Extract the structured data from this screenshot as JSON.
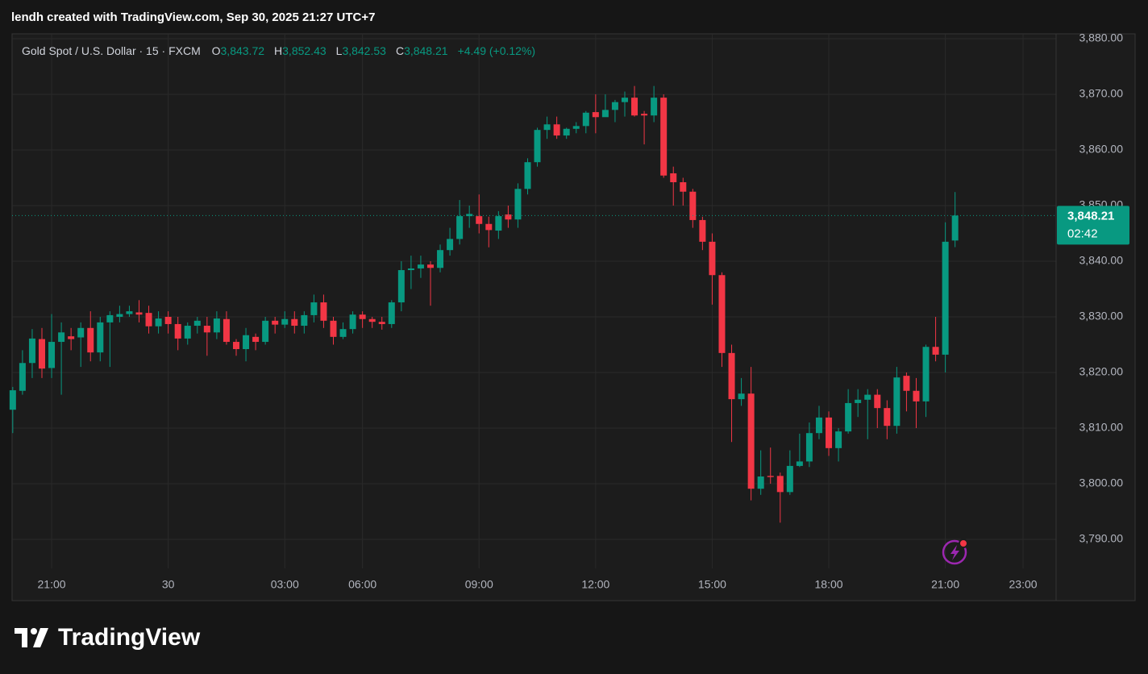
{
  "header": {
    "text": "lendh created with TradingView.com, Sep 30, 2025 21:27 UTC+7"
  },
  "chart_data": {
    "type": "candlestick",
    "symbol": "Gold Spot / U.S. Dollar · 15 · FXCM",
    "ohlc_legend": [
      {
        "key": "O",
        "value": "3,843.72"
      },
      {
        "key": "H",
        "value": "3,852.43"
      },
      {
        "key": "L",
        "value": "3,842.53"
      },
      {
        "key": "C",
        "value": "3,848.21"
      }
    ],
    "change": "+4.49 (+0.12%)",
    "open": [
      3813.3,
      3816.7,
      3821.7,
      3826,
      3820.8,
      3825.5,
      3826.5,
      3826.3,
      3828,
      3823.6,
      3829,
      3830,
      3830.5,
      3830.8,
      3830.7,
      3828.3,
      3830,
      3828.7,
      3826.1,
      3828.4,
      3828.4,
      3827.2,
      3829.6,
      3825.5,
      3824.2,
      3826.4,
      3825.5,
      3829.3,
      3828.6,
      3829.6,
      3828.4,
      3830.3,
      3832.6,
      3829.3,
      3826.4,
      3827.8,
      3830.4,
      3829.6,
      3829.1,
      3828.7,
      3832.6,
      3838.4,
      3838.7,
      3839.4,
      3838.8,
      3842,
      3844,
      3848.1,
      3848.1,
      3846.7,
      3845.5,
      3848.4,
      3847.5,
      3853,
      3857.8,
      3863.6,
      3864.6,
      3862.6,
      3863.8,
      3864.3,
      3866.8,
      3865.9,
      3867.2,
      3868.6,
      3869.4,
      3866.5,
      3866.2,
      3869.4,
      3855.8,
      3854.2,
      3852.5,
      3847.4,
      3843.5,
      3837.5,
      3823.5,
      3815.2,
      3816.2,
      3799.1,
      3801.4,
      3801.4,
      3798.5,
      3803.2,
      3804,
      3809.1,
      3811.9,
      3806.4,
      3809.4,
      3814.5,
      3815.1,
      3816,
      3813.6,
      3810.4,
      3819.4,
      3816.7,
      3814.8,
      3824.6,
      3823.2,
      3843.72
    ],
    "high": [
      3817.4,
      3824,
      3827.8,
      3828,
      3830.5,
      3829,
      3828,
      3829,
      3831,
      3830,
      3831,
      3832,
      3832,
      3833,
      3832,
      3831,
      3831,
      3830,
      3829,
      3830,
      3830,
      3831,
      3831,
      3826,
      3828,
      3827,
      3830,
      3830,
      3831,
      3831,
      3831,
      3834,
      3834,
      3830,
      3829,
      3831,
      3831,
      3830,
      3830,
      3833,
      3840,
      3841,
      3841,
      3840,
      3843,
      3846,
      3851,
      3850,
      3852,
      3848,
      3849,
      3850,
      3854,
      3858.5,
      3864,
      3866,
      3866,
      3864,
      3865,
      3867,
      3870,
      3870,
      3869,
      3870.5,
      3871.5,
      3867,
      3871.5,
      3870,
      3857,
      3855,
      3853,
      3848,
      3845,
      3838,
      3825,
      3819,
      3821,
      3806,
      3806.5,
      3802,
      3806,
      3809,
      3811,
      3814,
      3813,
      3810,
      3817,
      3817,
      3817,
      3817,
      3815,
      3821,
      3820,
      3819,
      3825,
      3830,
      3847,
      3852.43
    ],
    "low": [
      3809.1,
      3816,
      3819,
      3819,
      3819,
      3816,
      3824,
      3821,
      3822,
      3822,
      3821,
      3829,
      3830,
      3829,
      3827,
      3827,
      3827,
      3824,
      3825,
      3827,
      3823,
      3826,
      3825,
      3823,
      3822,
      3824,
      3825,
      3827,
      3828,
      3827,
      3827,
      3829,
      3828,
      3825,
      3826,
      3827,
      3828,
      3828,
      3827.7,
      3828,
      3831,
      3835,
      3837,
      3832,
      3838,
      3841,
      3843,
      3846,
      3845,
      3842.5,
      3844,
      3846,
      3846,
      3852,
      3857,
      3862,
      3862,
      3862,
      3863,
      3863,
      3863,
      3866,
      3865,
      3866,
      3866,
      3861,
      3865,
      3855,
      3850,
      3850,
      3846,
      3842,
      3832.2,
      3821,
      3807.5,
      3814,
      3797,
      3798,
      3800,
      3793,
      3798,
      3803,
      3803,
      3808,
      3805,
      3804,
      3809,
      3812,
      3808,
      3810,
      3808,
      3809,
      3813,
      3810,
      3812,
      3822,
      3820,
      3842.53
    ],
    "close": [
      3816.8,
      3821.7,
      3826.1,
      3820.7,
      3825.5,
      3827.2,
      3826,
      3828,
      3823.6,
      3829,
      3830.3,
      3830.5,
      3831,
      3830.4,
      3828.3,
      3829.7,
      3828.7,
      3826.1,
      3828.4,
      3829.3,
      3827.2,
      3829.7,
      3825.5,
      3824.2,
      3826.7,
      3825.5,
      3829.3,
      3828.6,
      3829.6,
      3828.4,
      3830.3,
      3832.6,
      3829.3,
      3826.4,
      3827.8,
      3830.4,
      3829.6,
      3829.1,
      3828.7,
      3832.6,
      3838.4,
      3838.7,
      3839.4,
      3838.8,
      3842,
      3844,
      3848.1,
      3848.5,
      3846.7,
      3845.6,
      3848.1,
      3847.5,
      3853,
      3857.8,
      3863.6,
      3864.6,
      3862.6,
      3863.8,
      3864.3,
      3866.7,
      3865.9,
      3867.2,
      3868.6,
      3869.4,
      3866.2,
      3866.2,
      3869.4,
      3855.4,
      3854.2,
      3852.5,
      3847.4,
      3843.5,
      3837.5,
      3823.5,
      3815.2,
      3816.2,
      3799.1,
      3801.3,
      3801.2,
      3798.5,
      3803.2,
      3804,
      3809.1,
      3811.9,
      3806.4,
      3809.4,
      3814.5,
      3815.1,
      3816,
      3813.6,
      3810.4,
      3819.1,
      3816.7,
      3814.8,
      3824.6,
      3823.2,
      3843.5,
      3848.21
    ],
    "up_color": "#089981",
    "down_color": "#f23645",
    "xlim": [
      -0.07,
      107.4
    ],
    "xticks": [
      {
        "value": 4,
        "label": "21:00"
      },
      {
        "value": 16,
        "label": "30"
      },
      {
        "value": 28,
        "label": "03:00"
      },
      {
        "value": 36,
        "label": "06:00"
      },
      {
        "value": 48,
        "label": "09:00"
      },
      {
        "value": 60,
        "label": "12:00"
      },
      {
        "value": 72,
        "label": "15:00"
      },
      {
        "value": 84,
        "label": "18:00"
      },
      {
        "value": 96,
        "label": "21:00"
      },
      {
        "value": 104,
        "label": "23:00"
      }
    ],
    "ylim": [
      3784.78,
      3880.87
    ],
    "yticks": [
      {
        "value": 3790,
        "label": "3,790.00"
      },
      {
        "value": 3800,
        "label": "3,800.00"
      },
      {
        "value": 3810,
        "label": "3,810.00"
      },
      {
        "value": 3820,
        "label": "3,820.00"
      },
      {
        "value": 3830,
        "label": "3,830.00"
      },
      {
        "value": 3840,
        "label": "3,840.00"
      },
      {
        "value": 3850,
        "label": "3,850.00"
      },
      {
        "value": 3860,
        "label": "3,860.00"
      },
      {
        "value": 3870,
        "label": "3,870.00"
      },
      {
        "value": 3880,
        "label": "3,880.00"
      }
    ],
    "grid": true,
    "last_price_label": "3,848.21",
    "countdown": "02:42"
  },
  "footer": {
    "brand": "TradingView"
  }
}
